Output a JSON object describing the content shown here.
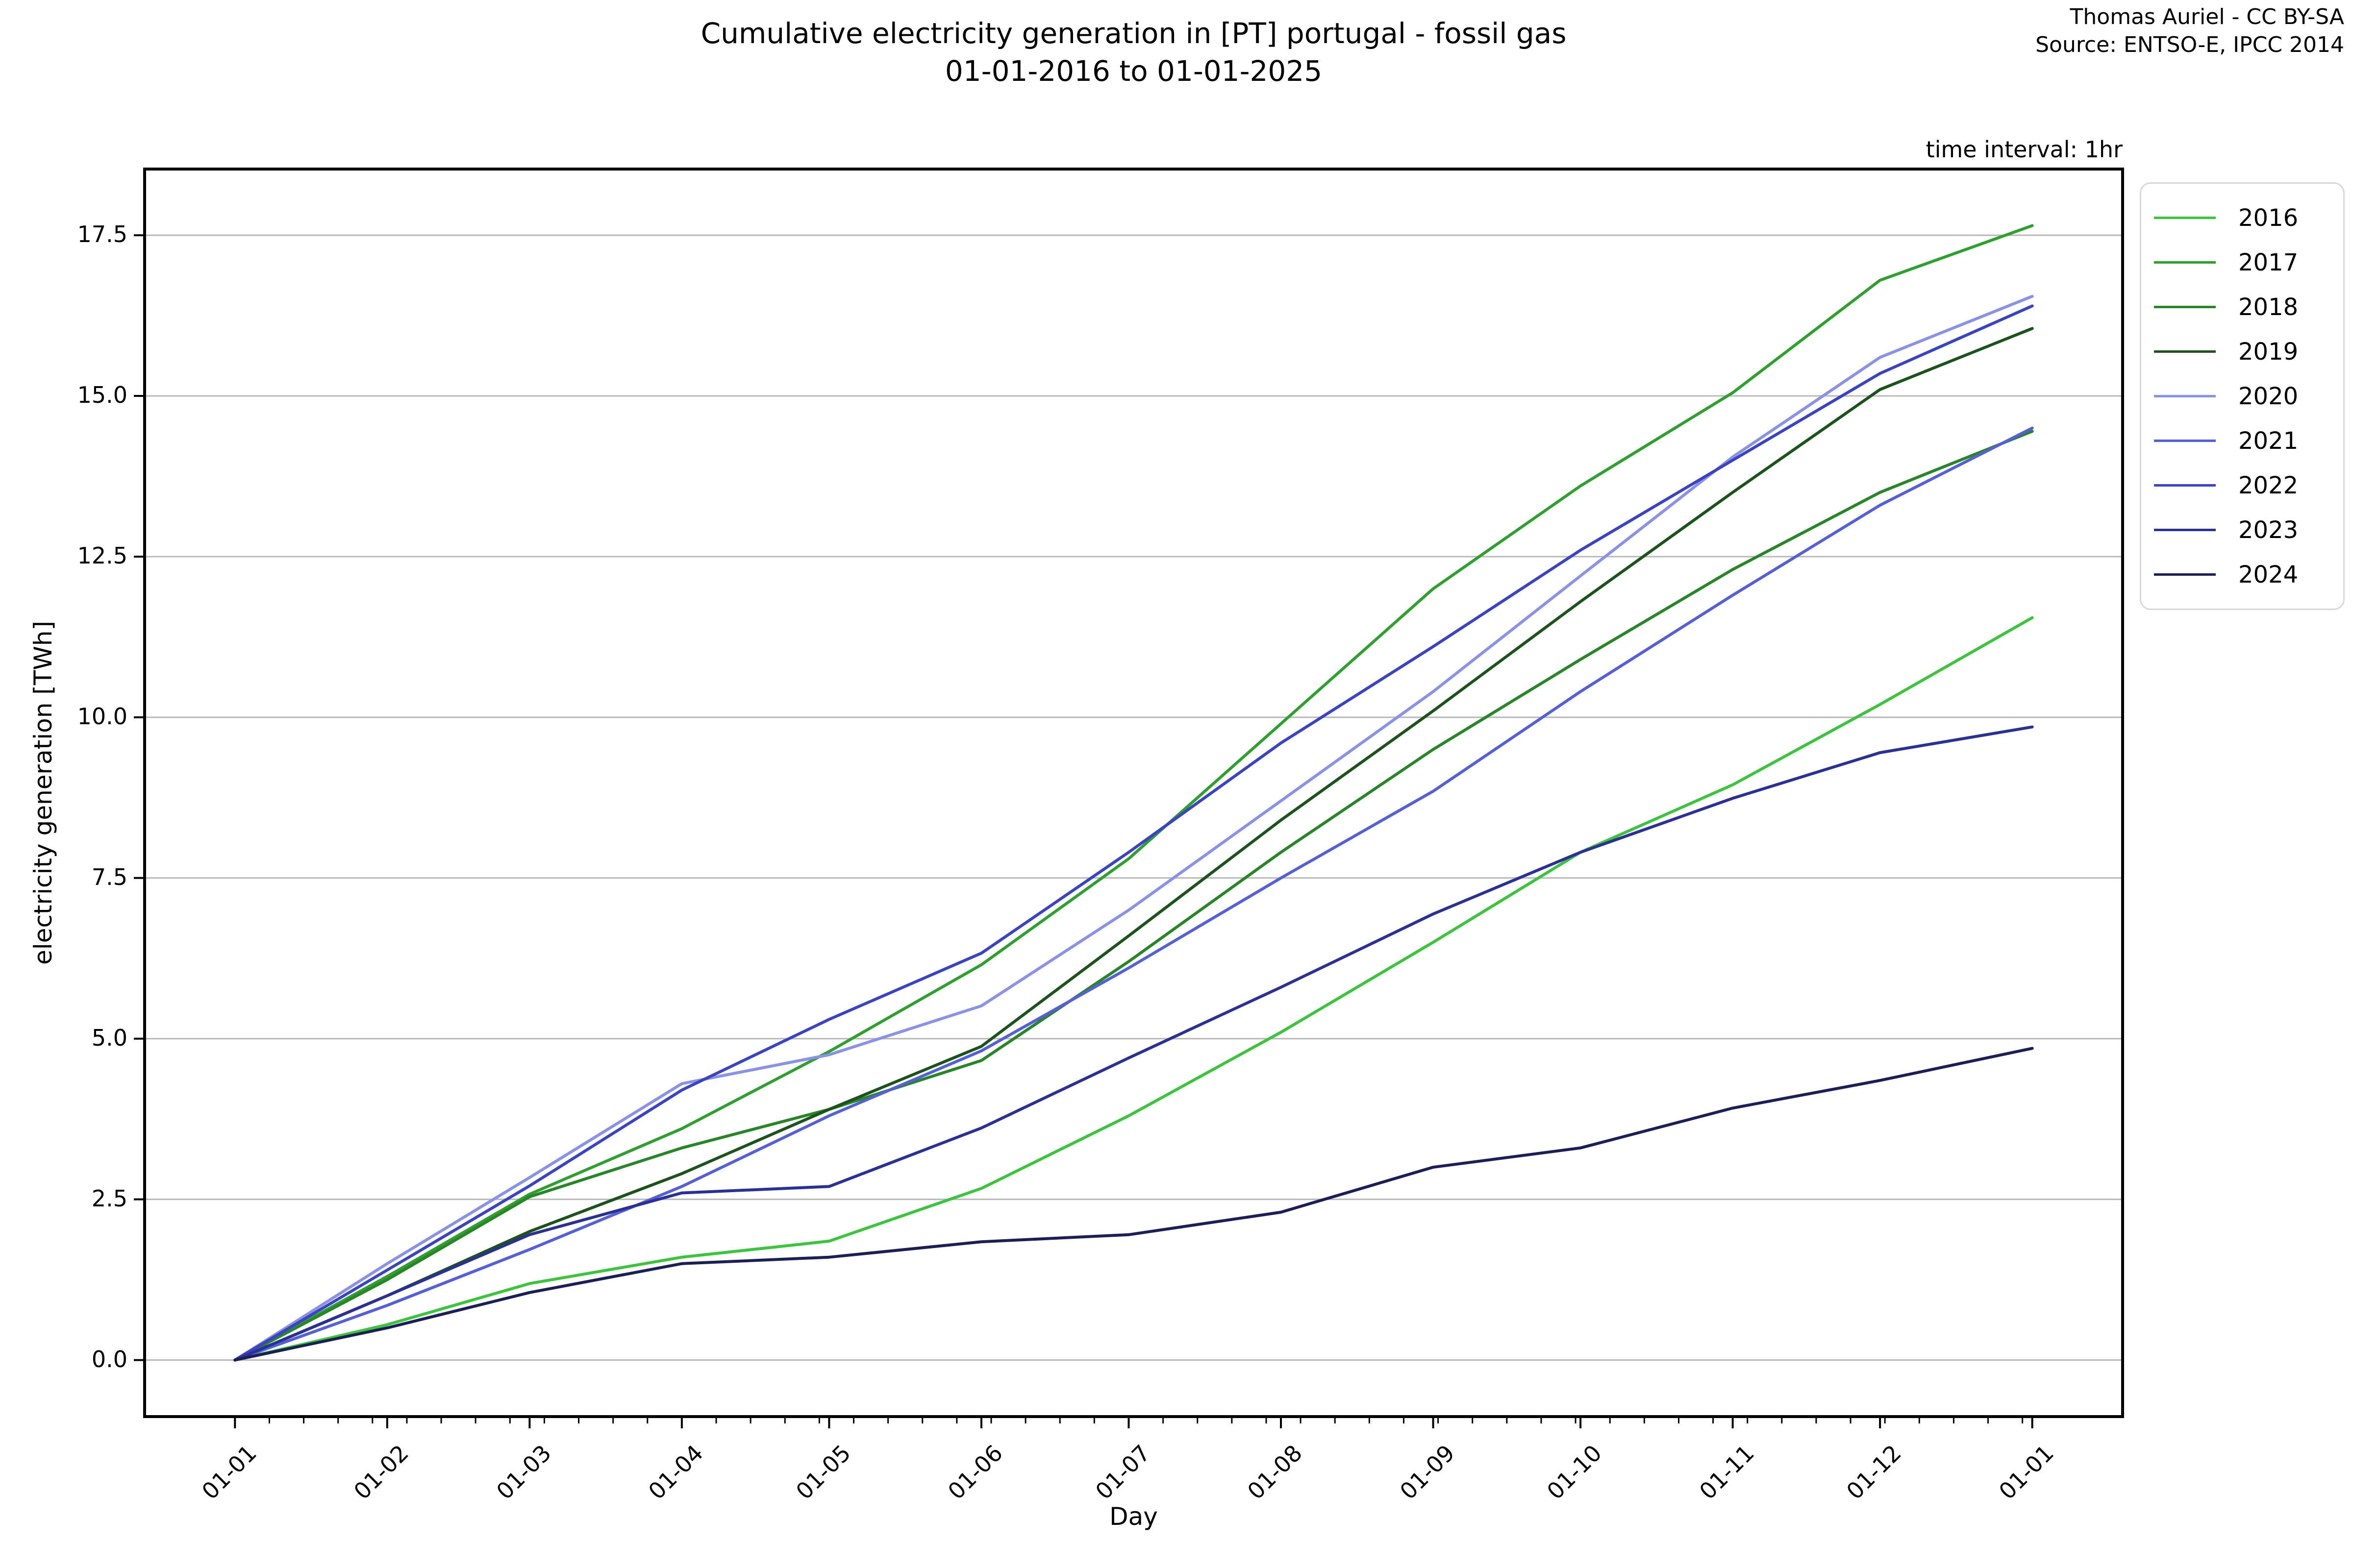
{
  "figure": {
    "title_line1": "Cumulative electricity generation in [PT] portugal - fossil gas",
    "title_line2": "01-01-2016 to 01-01-2025",
    "attribution_line1": "Thomas Auriel - CC BY-SA",
    "attribution_line2": "Source: ENTSO-E, IPCC 2014",
    "time_interval_note": "time interval: 1hr"
  },
  "chart_data": {
    "type": "line",
    "title": "Cumulative electricity generation in [PT] portugal - fossil gas 01-01-2016 to 01-01-2025",
    "xlabel": "Day",
    "ylabel": "electricity generation [TWh]",
    "legend_position": "right of plot, top",
    "grid": "horizontal gridlines only",
    "grid_color": "#b8b8b8",
    "x_tick_labels": [
      "01-01",
      "01-02",
      "01-03",
      "01-04",
      "01-05",
      "01-06",
      "01-07",
      "01-08",
      "01-09",
      "01-10",
      "01-11",
      "01-12",
      "01-01"
    ],
    "x_days": [
      0,
      31,
      60,
      91,
      121,
      152,
      182,
      213,
      244,
      274,
      305,
      335,
      366
    ],
    "xlim_days": [
      -18.4,
      384.4
    ],
    "y_tick_labels": [
      "0.0",
      "2.5",
      "5.0",
      "7.5",
      "10.0",
      "12.5",
      "15.0",
      "17.5"
    ],
    "y_ticks": [
      0,
      2.5,
      5,
      7.5,
      10,
      12.5,
      15,
      17.5
    ],
    "ylim": [
      -0.88,
      18.53
    ],
    "minor_tick_step_days": 7,
    "units": "TWh",
    "series": [
      {
        "name": "2016",
        "color": "#3ec33e",
        "values": [
          0,
          0.55,
          1.19,
          1.6,
          1.85,
          2.67,
          3.8,
          5.1,
          6.5,
          7.9,
          8.95,
          10.2,
          11.55
        ]
      },
      {
        "name": "2017",
        "color": "#2fa02f",
        "values": [
          0,
          1.3,
          2.58,
          3.6,
          4.8,
          6.15,
          7.8,
          9.9,
          12.0,
          13.6,
          15.05,
          16.8,
          17.65
        ]
      },
      {
        "name": "2018",
        "color": "#288528",
        "values": [
          0,
          1.25,
          2.54,
          3.3,
          3.9,
          4.66,
          6.2,
          7.9,
          9.5,
          10.9,
          12.3,
          13.5,
          14.45
        ]
      },
      {
        "name": "2019",
        "color": "#1c521c",
        "values": [
          0,
          1.0,
          2.0,
          2.9,
          3.9,
          4.88,
          6.6,
          8.4,
          10.1,
          11.8,
          13.5,
          15.1,
          16.05
        ]
      },
      {
        "name": "2020",
        "color": "#8a92e8",
        "values": [
          0,
          1.5,
          2.84,
          4.3,
          4.75,
          5.51,
          7.0,
          8.7,
          10.4,
          12.2,
          14.05,
          15.6,
          16.55
        ]
      },
      {
        "name": "2021",
        "color": "#5560d6",
        "values": [
          0,
          0.85,
          1.72,
          2.7,
          3.8,
          4.81,
          6.1,
          7.5,
          8.85,
          10.4,
          11.9,
          13.3,
          14.5
        ]
      },
      {
        "name": "2022",
        "color": "#3a43c2",
        "values": [
          0,
          1.4,
          2.71,
          4.2,
          5.3,
          6.33,
          7.9,
          9.6,
          11.1,
          12.6,
          14.0,
          15.35,
          16.4
        ]
      },
      {
        "name": "2023",
        "color": "#2a3094",
        "values": [
          0,
          1.0,
          1.95,
          2.6,
          2.7,
          3.61,
          4.7,
          5.8,
          6.94,
          7.9,
          8.74,
          9.45,
          9.85
        ]
      },
      {
        "name": "2024",
        "color": "#1b1f56",
        "values": [
          0,
          0.5,
          1.05,
          1.5,
          1.6,
          1.84,
          1.95,
          2.3,
          3.0,
          3.3,
          3.92,
          4.35,
          4.85
        ]
      }
    ]
  }
}
